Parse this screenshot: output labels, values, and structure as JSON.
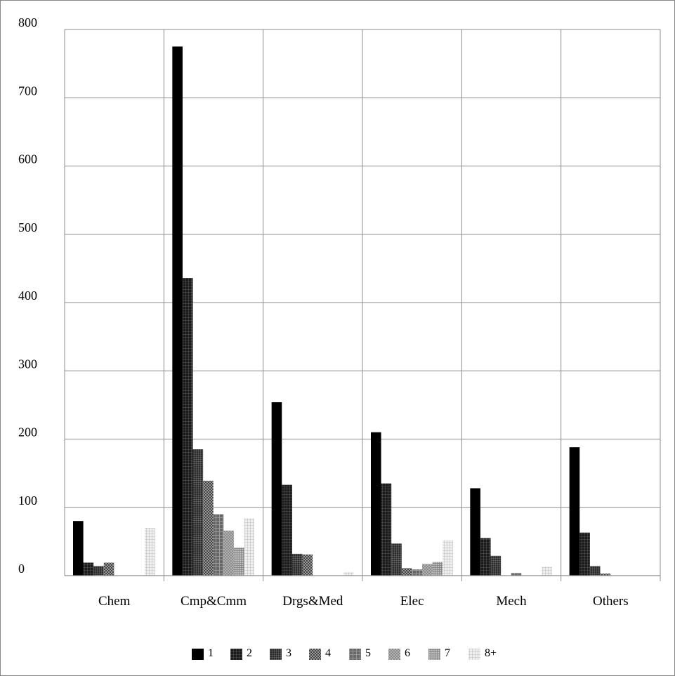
{
  "chart_data": {
    "type": "bar",
    "title": "",
    "xlabel": "",
    "ylabel": "",
    "categories": [
      "Chem",
      "Cmp&Cmm",
      "Drgs&Med",
      "Elec",
      "Mech",
      "Others"
    ],
    "ylim": [
      0,
      800
    ],
    "yticks": [
      0,
      100,
      200,
      300,
      400,
      500,
      600,
      700,
      800
    ],
    "grid": true,
    "legend_position": "bottom",
    "series": [
      {
        "name": "1",
        "pattern": "solid",
        "values": [
          80,
          775,
          254,
          210,
          128,
          188
        ]
      },
      {
        "name": "2",
        "pattern": "grid",
        "values": [
          19,
          436,
          133,
          135,
          55,
          63
        ]
      },
      {
        "name": "3",
        "pattern": "grid",
        "values": [
          14,
          185,
          32,
          47,
          29,
          14
        ]
      },
      {
        "name": "4",
        "pattern": "check",
        "values": [
          19,
          139,
          31,
          11,
          0,
          3
        ]
      },
      {
        "name": "5",
        "pattern": "plus",
        "values": [
          0,
          90,
          0,
          9,
          4,
          0
        ]
      },
      {
        "name": "6",
        "pattern": "dots",
        "values": [
          0,
          66,
          0,
          17,
          0,
          0
        ]
      },
      {
        "name": "7",
        "pattern": "stripes",
        "values": [
          0,
          41,
          0,
          20,
          0,
          0
        ]
      },
      {
        "name": "8+",
        "pattern": "light",
        "values": [
          70,
          84,
          5,
          52,
          13,
          0
        ]
      }
    ]
  }
}
